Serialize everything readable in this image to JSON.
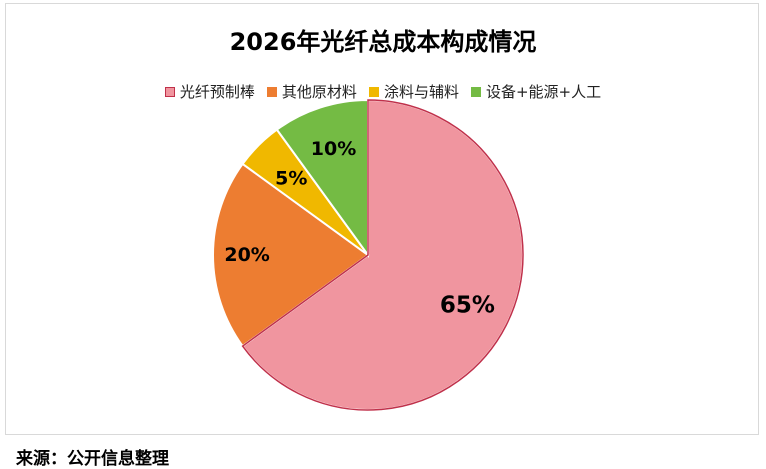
{
  "chart_data": {
    "type": "pie",
    "title": "2026年光纤总成本构成情况",
    "categories": [
      "光纤预制棒",
      "其他原材料",
      "涂料与辅料",
      "设备+能源+人工"
    ],
    "values": [
      65,
      20,
      5,
      10
    ],
    "value_labels": [
      "65%",
      "20%",
      "5%",
      "10%"
    ],
    "colors": [
      "#f0959f",
      "#ed7d31",
      "#f0b800",
      "#74bb44"
    ],
    "legend_position": "top"
  },
  "source_note": "来源：公开信息整理"
}
